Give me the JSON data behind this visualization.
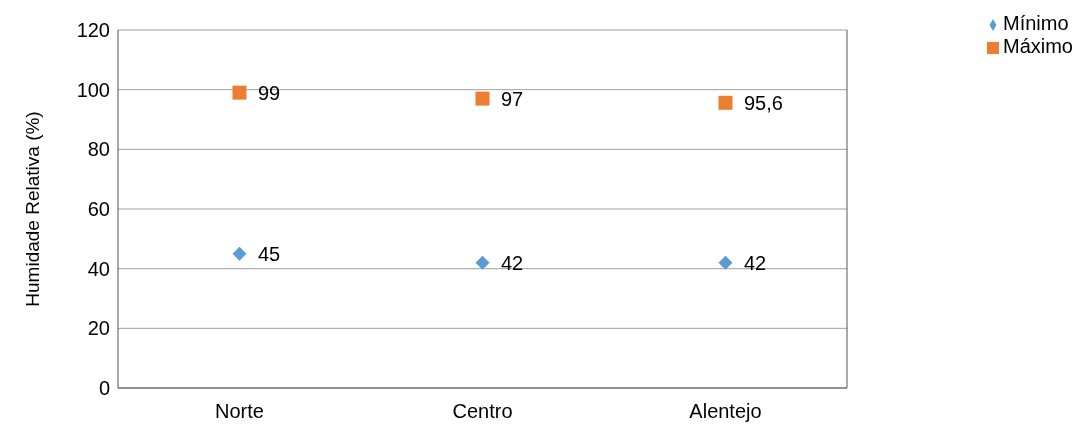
{
  "chart_data": {
    "type": "scatter",
    "ylabel": "Humidade Relativa (%)",
    "categories": [
      "Norte",
      "Centro",
      "Alentejo"
    ],
    "series": [
      {
        "name": "Mínimo",
        "color": "#5b9bd5",
        "marker": "diamond",
        "values": [
          45,
          42,
          42
        ],
        "value_labels": [
          "45",
          "42",
          "42"
        ]
      },
      {
        "name": "Máximo",
        "color": "#ed7d31",
        "marker": "square",
        "values": [
          99,
          97,
          95.6
        ],
        "value_labels": [
          "99",
          "97",
          "95,6"
        ]
      }
    ],
    "ylim": [
      0,
      120
    ],
    "yticks": [
      0,
      20,
      40,
      60,
      80,
      100,
      120
    ],
    "grid": "y",
    "legend": "top right"
  }
}
